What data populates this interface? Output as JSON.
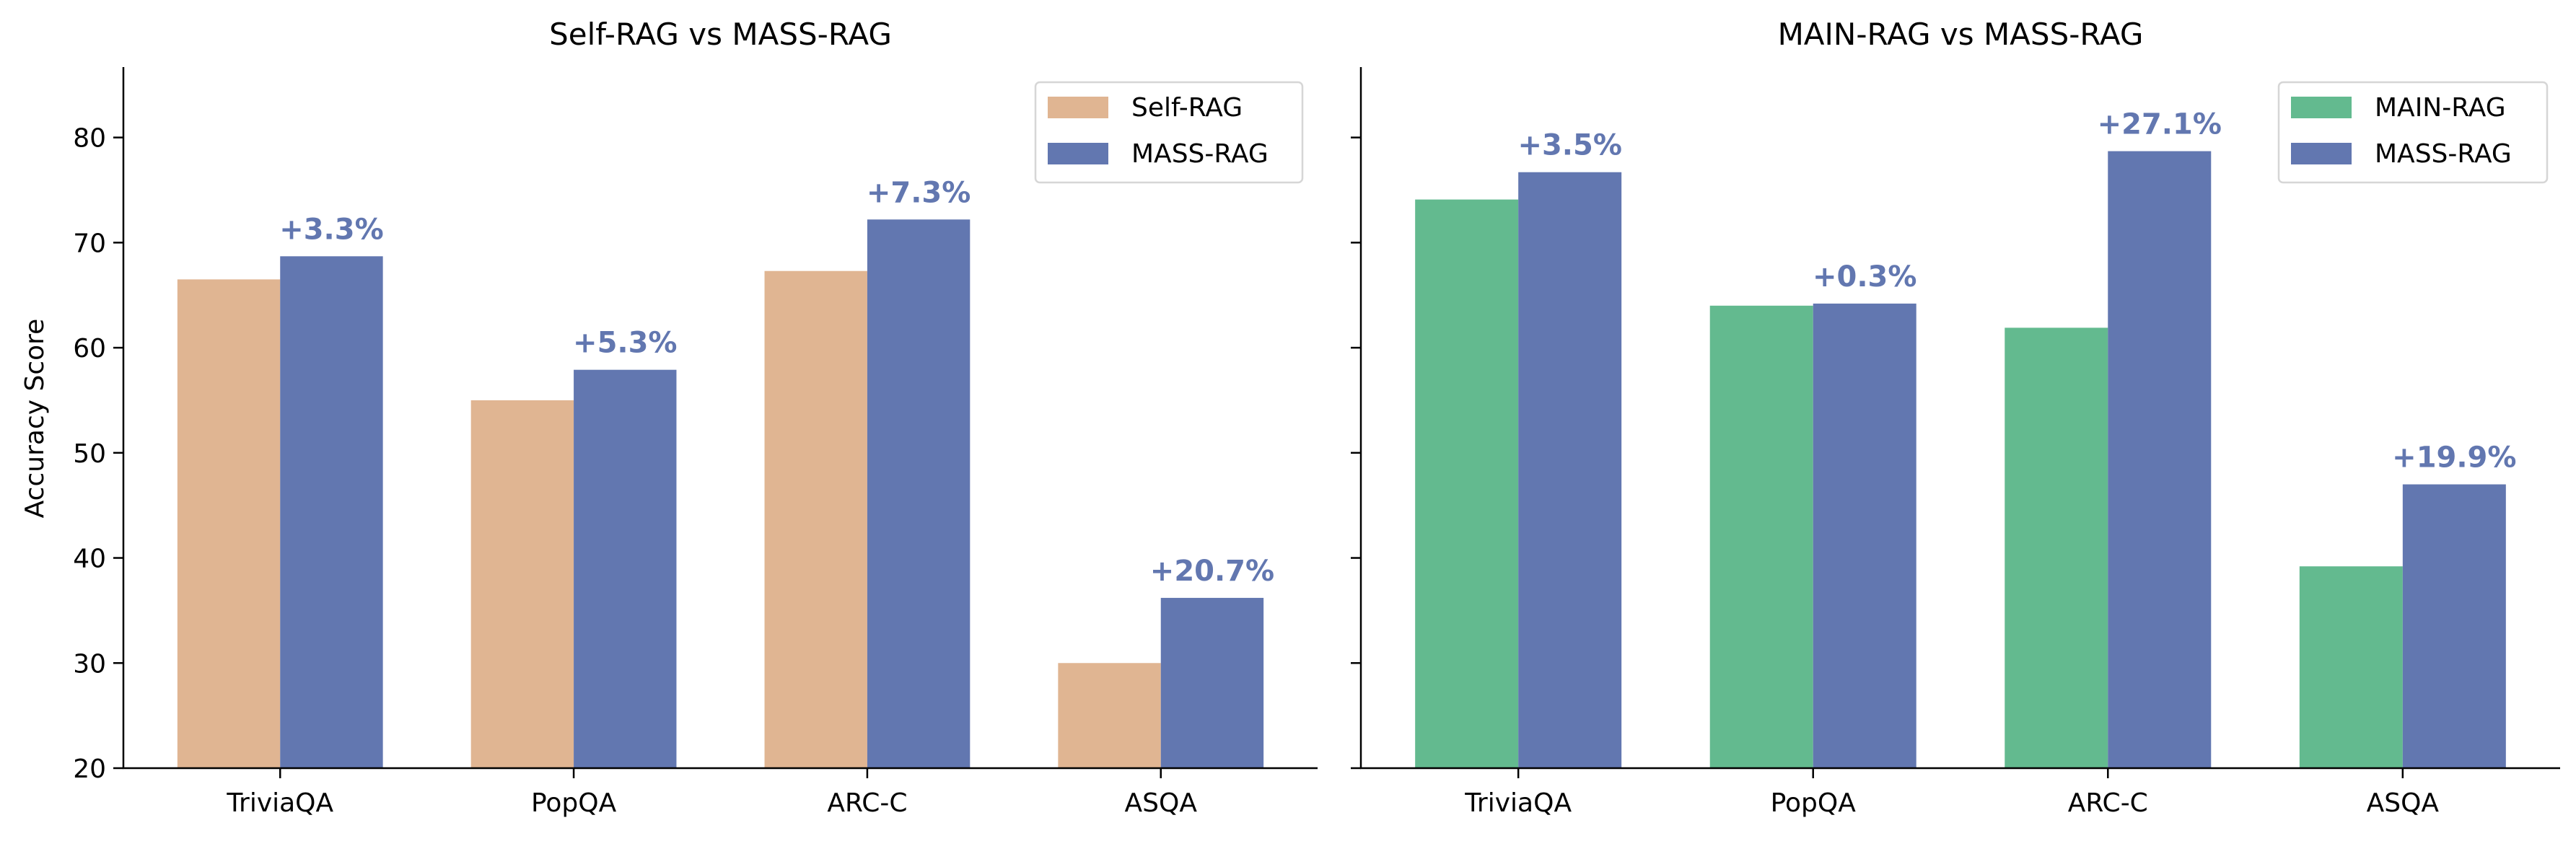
{
  "chart_data": [
    {
      "type": "bar",
      "title": "Self-RAG vs MASS-RAG",
      "xlabel": "",
      "ylabel": "Accuracy Score",
      "categories": [
        "TriviaQA",
        "PopQA",
        "ARC-C",
        "ASQA"
      ],
      "series": [
        {
          "name": "Self-RAG",
          "values": [
            66.5,
            55.0,
            67.3,
            30.0
          ],
          "color": "#e0b592"
        },
        {
          "name": "MASS-RAG",
          "values": [
            68.7,
            57.9,
            72.2,
            36.2
          ],
          "color": "#6277b0"
        }
      ],
      "annotations": [
        "+3.3%",
        "+5.3%",
        "+7.3%",
        "+20.7%"
      ],
      "annotation_color": "#6277b0",
      "ylim": [
        20,
        86.7
      ],
      "yticks": [
        20,
        30,
        40,
        50,
        60,
        70,
        80
      ],
      "show_ytick_labels": true,
      "grid": false,
      "legend": "top-right"
    },
    {
      "type": "bar",
      "title": "MAIN-RAG vs MASS-RAG",
      "xlabel": "",
      "ylabel": "",
      "categories": [
        "TriviaQA",
        "PopQA",
        "ARC-C",
        "ASQA"
      ],
      "series": [
        {
          "name": "MAIN-RAG",
          "values": [
            74.1,
            64.0,
            61.9,
            39.2
          ],
          "color": "#63ba8f"
        },
        {
          "name": "MASS-RAG",
          "values": [
            76.7,
            64.2,
            78.7,
            47.0
          ],
          "color": "#6277b0"
        }
      ],
      "annotations": [
        "+3.5%",
        "+0.3%",
        "+27.1%",
        "+19.9%"
      ],
      "annotation_color": "#6277b0",
      "ylim": [
        20,
        86.7
      ],
      "yticks": [
        20,
        30,
        40,
        50,
        60,
        70,
        80
      ],
      "show_ytick_labels": false,
      "grid": false,
      "legend": "top-right"
    }
  ]
}
